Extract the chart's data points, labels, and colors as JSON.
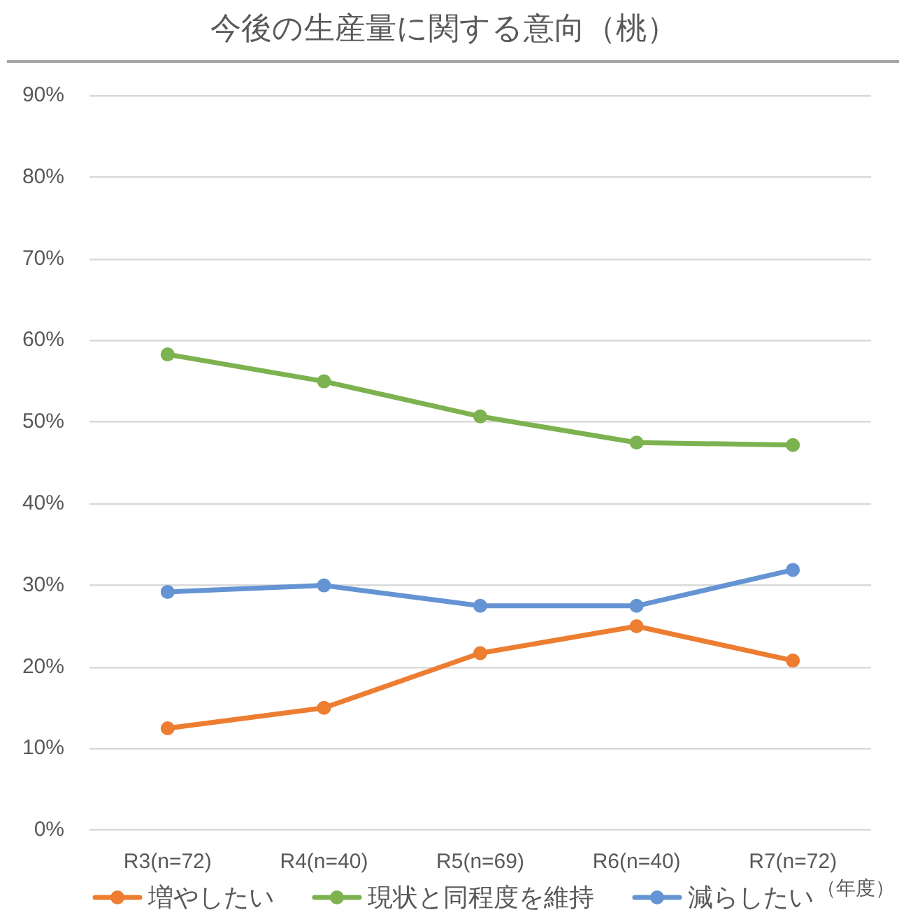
{
  "chart_data": {
    "type": "line",
    "title": "今後の生産量に関する意向（桃）",
    "xlabel": "（年度）",
    "categories": [
      "R3(n=72)",
      "R4(n=40)",
      "R5(n=69)",
      "R6(n=40)",
      "R7(n=72)"
    ],
    "series": [
      {
        "name": "増やしたい",
        "color": "#ed7d31",
        "values": [
          12.5,
          15.0,
          21.7,
          25.0,
          20.8
        ]
      },
      {
        "name": "現状と同程度を維持",
        "color": "#7cb24f",
        "values": [
          58.3,
          55.0,
          50.7,
          47.5,
          47.2
        ]
      },
      {
        "name": "減らしたい",
        "color": "#6594d4",
        "values": [
          29.2,
          30.0,
          27.5,
          27.5,
          31.9
        ]
      }
    ],
    "ylim": [
      0,
      90
    ],
    "yticks": [
      {
        "value": 0,
        "label": "0%"
      },
      {
        "value": 10,
        "label": "10%"
      },
      {
        "value": 20,
        "label": "20%"
      },
      {
        "value": 30,
        "label": "30%"
      },
      {
        "value": 40,
        "label": "40%"
      },
      {
        "value": 50,
        "label": "50%"
      },
      {
        "value": 60,
        "label": "60%"
      },
      {
        "value": 70,
        "label": "70%"
      },
      {
        "value": 80,
        "label": "80%"
      },
      {
        "value": 90,
        "label": "90%"
      }
    ],
    "grid": "y",
    "legend": "bottom",
    "marker": "circle",
    "line_style": "solid"
  }
}
